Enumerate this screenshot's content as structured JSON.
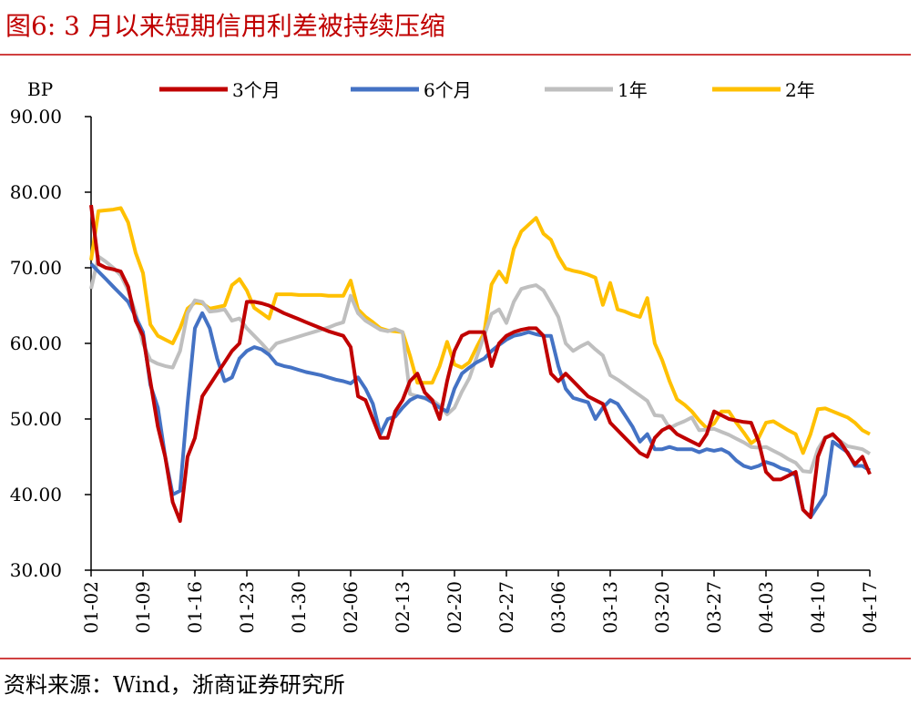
{
  "chart_data": {
    "type": "line",
    "title": "图6:  3 月以来短期信用利差被持续压缩",
    "y_label": "BP",
    "source": "资料来源：Wind，浙商证券研究所",
    "categories": [
      "01-02",
      null,
      null,
      null,
      null,
      null,
      null,
      "01-09",
      null,
      null,
      null,
      null,
      null,
      null,
      "01-16",
      null,
      null,
      null,
      null,
      null,
      null,
      "01-23",
      null,
      null,
      null,
      null,
      null,
      null,
      "01-30",
      null,
      null,
      null,
      null,
      null,
      null,
      "02-06",
      null,
      null,
      null,
      null,
      null,
      null,
      "02-13",
      null,
      null,
      null,
      null,
      null,
      null,
      "02-20",
      null,
      null,
      null,
      null,
      null,
      null,
      "02-27",
      null,
      null,
      null,
      null,
      null,
      null,
      "03-06",
      null,
      null,
      null,
      null,
      null,
      null,
      "03-13",
      null,
      null,
      null,
      null,
      null,
      null,
      "03-20",
      null,
      null,
      null,
      null,
      null,
      null,
      "03-27",
      null,
      null,
      null,
      null,
      null,
      null,
      "04-03",
      null,
      null,
      null,
      null,
      null,
      null,
      "04-10",
      null,
      null,
      null,
      null,
      null,
      null,
      "04-17"
    ],
    "ylim": [
      30,
      90
    ],
    "yticks": [
      {
        "value": 30,
        "label": "30.00"
      },
      {
        "value": 40,
        "label": "40.00"
      },
      {
        "value": 50,
        "label": "50.00"
      },
      {
        "value": 60,
        "label": "60.00"
      },
      {
        "value": 70,
        "label": "70.00"
      },
      {
        "value": 80,
        "label": "80.00"
      },
      {
        "value": 90,
        "label": "90.00"
      }
    ],
    "grid": false,
    "legend": "top",
    "series": [
      {
        "name": "3个月",
        "color": "#c00000",
        "values": [
          78.3,
          70.5,
          70,
          69.8,
          69.5,
          67.5,
          63,
          61,
          55,
          49,
          45,
          39,
          36.5,
          45,
          47.5,
          53,
          54.5,
          56,
          57.5,
          59,
          60,
          65.5,
          65.5,
          65.3,
          65,
          64.5,
          64,
          63.6,
          63.2,
          62.8,
          62.4,
          62,
          61.6,
          61.3,
          61,
          59.5,
          53,
          52.5,
          50,
          47.5,
          47.5,
          51,
          52.5,
          55,
          56,
          53.5,
          52.5,
          50,
          55,
          59,
          61,
          61.5,
          61.5,
          61.5,
          57,
          60,
          61,
          61.5,
          61.8,
          62,
          62,
          61,
          56,
          55,
          56,
          55,
          54,
          53,
          52.5,
          52,
          49.5,
          48.5,
          47.5,
          46.5,
          45.5,
          45,
          47.5,
          48.5,
          49,
          48,
          47.5,
          47,
          46.5,
          48,
          51,
          50.5,
          50,
          49.8,
          49.6,
          49.5,
          47,
          43,
          42,
          42,
          42.5,
          43,
          38,
          37,
          45,
          47.5,
          48,
          47,
          45.5,
          44,
          45,
          42.7
        ]
      },
      {
        "name": "6个月",
        "color": "#4472c4",
        "values": [
          70.5,
          69.5,
          68.5,
          67.5,
          66.5,
          65.5,
          63.5,
          61.5,
          54.5,
          51.5,
          45,
          40,
          40.5,
          52,
          62,
          64,
          62,
          58,
          55,
          55.5,
          58,
          59,
          59.5,
          59.2,
          58.5,
          57.3,
          57,
          56.8,
          56.5,
          56.2,
          56,
          55.8,
          55.5,
          55.2,
          55,
          54.7,
          55.5,
          54,
          52,
          48,
          50,
          50.3,
          51.5,
          52.5,
          53,
          52.8,
          52.2,
          51.5,
          51,
          54,
          56,
          56.8,
          57.5,
          58,
          59,
          59.8,
          60.5,
          61,
          61.2,
          61.5,
          61.2,
          61,
          61,
          57,
          54,
          52.8,
          52.5,
          52.2,
          50,
          51.5,
          52.5,
          52,
          50.5,
          49,
          47,
          48,
          46,
          46,
          46.3,
          46,
          46,
          46,
          45.6,
          46,
          45.8,
          46,
          45.5,
          44.5,
          43.8,
          43.5,
          43.8,
          44.3,
          44,
          43.5,
          43.2,
          42.5,
          38,
          37,
          38.5,
          40,
          47,
          46.3,
          45.6,
          43.8,
          43.8,
          43.2
        ]
      },
      {
        "name": "1年",
        "color": "#bfbfbf",
        "values": [
          67.2,
          71.5,
          70.8,
          70,
          69,
          67,
          64,
          60,
          57.8,
          57.3,
          57,
          56.8,
          59,
          64,
          65.7,
          65.5,
          64.2,
          64.3,
          64.5,
          63,
          63.3,
          62,
          61,
          60,
          58.9,
          60,
          60.3,
          60.6,
          60.9,
          61.2,
          61.5,
          61.8,
          62.1,
          62.5,
          62.8,
          66.3,
          64,
          63,
          62.4,
          61.8,
          61.6,
          61.9,
          61.5,
          53.3,
          53,
          52.7,
          52.5,
          51.8,
          50.6,
          51.5,
          53.6,
          55.4,
          58.2,
          61,
          63.9,
          64.5,
          62.7,
          65.5,
          67.2,
          67.5,
          67.7,
          67,
          65.3,
          63.5,
          60,
          59,
          59.6,
          60.1,
          59.2,
          58.4,
          55.8,
          55.2,
          54.5,
          53.8,
          53.1,
          52.4,
          50.5,
          50.4,
          48.8,
          49.3,
          49.7,
          50.2,
          48.5,
          48.6,
          48.7,
          48.3,
          47.9,
          47.4,
          46.9,
          46.3,
          46.2,
          46.3,
          45.8,
          45.3,
          44.7,
          44.2,
          43.1,
          43,
          46,
          47.6,
          47.8,
          47.1,
          46.4,
          46.2,
          46,
          45.4
        ]
      },
      {
        "name": "2年",
        "color": "#ffc000",
        "values": [
          71,
          77.5,
          77.6,
          77.7,
          77.9,
          76,
          72,
          69.3,
          62.5,
          61,
          60.5,
          60,
          62,
          64.6,
          65.4,
          65.3,
          64.6,
          64.8,
          65,
          67.7,
          68.5,
          67,
          64.7,
          64,
          63.3,
          66.5,
          66.5,
          66.5,
          66.4,
          66.4,
          66.4,
          66.4,
          66.3,
          66.3,
          66.3,
          68.3,
          64.5,
          63.5,
          62.8,
          62,
          61.7,
          61.6,
          61.5,
          58.4,
          54.8,
          54.8,
          54.8,
          57,
          60.2,
          57.2,
          56.8,
          57.5,
          59.5,
          61.4,
          67.8,
          69.5,
          68.1,
          72.5,
          74.8,
          75.7,
          76.6,
          74.5,
          73.7,
          71.5,
          69.9,
          69.6,
          69.4,
          69.1,
          68.7,
          65.1,
          68,
          64.5,
          64.2,
          63.8,
          63.5,
          66,
          60,
          57.8,
          55,
          52.6,
          51.9,
          51,
          49.8,
          48.8,
          49.4,
          51,
          51,
          49.5,
          48.2,
          46.8,
          47.5,
          49.5,
          49.7,
          49.1,
          48.5,
          48,
          45.5,
          48,
          51.3,
          51.4,
          51,
          50.6,
          50.2,
          49.5,
          48.5,
          48
        ]
      }
    ]
  }
}
